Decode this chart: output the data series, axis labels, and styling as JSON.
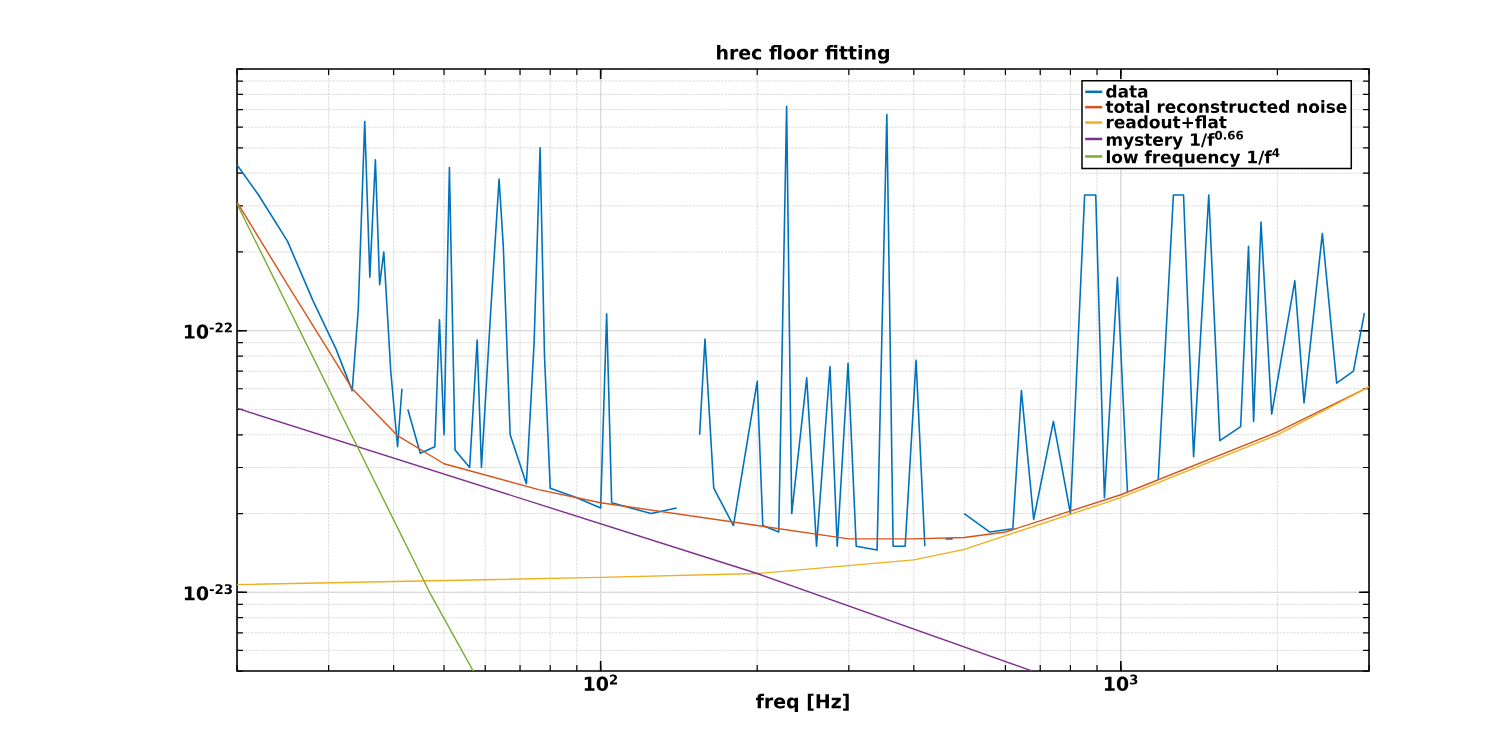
{
  "chart_data": {
    "type": "line",
    "title": "hrec floor fitting",
    "xlabel": "freq [Hz]",
    "log": "xy",
    "grid": true,
    "legend": "top right",
    "xlim": [
      20,
      3000
    ],
    "ylim": [
      5e-24,
      1e-21
    ],
    "xticks": [
      {
        "value": 100,
        "label": "10$^{2}$"
      },
      {
        "value": 1000,
        "label": "10$^{3}$"
      }
    ],
    "yticks": [
      {
        "value": 1e-23,
        "label": "10$^{-23}$"
      },
      {
        "value": 1e-22,
        "label": "10$^{-22}$"
      }
    ],
    "series": [
      {
        "name": "data",
        "color": "#0072bd",
        "x": [
          20,
          22,
          25,
          28,
          31,
          33.3,
          34.2,
          35.2,
          36,
          36.9,
          37.6,
          38.3,
          39.5,
          40.7,
          41.5,
          42,
          42.6,
          45,
          48,
          49,
          50,
          51.2,
          52.5,
          56,
          57.9,
          59,
          61.5,
          63.8,
          65,
          67,
          72,
          74.5,
          76.5,
          78,
          80,
          90,
          100,
          102.7,
          105,
          125,
          140,
          150.6,
          155,
          158.7,
          165,
          180,
          200,
          205,
          220,
          227.8,
          233,
          249,
          260,
          276,
          285,
          299,
          310,
          340,
          355,
          365,
          385,
          404,
          420,
          438,
          450,
          460,
          475,
          488,
          500,
          560,
          620,
          644,
          680,
          742,
          800,
          852,
          895,
          930,
          985,
          1030,
          1100,
          1180,
          1262,
          1320,
          1380,
          1476,
          1550,
          1700,
          1760,
          1800,
          1860,
          1950,
          2160,
          2250,
          2440,
          2600,
          2800,
          2940
        ],
        "values": [
          4.3e-22,
          3.3e-22,
          2.2e-22,
          1.3e-22,
          8.5e-23,
          5.9e-23,
          1.2e-22,
          6.3e-22,
          1.6e-22,
          4.5e-22,
          1.5e-22,
          2e-22,
          7e-23,
          3.6e-23,
          6e-23,
          null,
          5e-23,
          3.4e-23,
          3.6e-23,
          1.1e-22,
          4e-23,
          4.2e-22,
          3.5e-23,
          3e-23,
          9.2e-23,
          3e-23,
          1.2e-22,
          3.8e-22,
          2.1e-22,
          4e-23,
          2.6e-23,
          9e-23,
          5e-22,
          8e-23,
          2.5e-23,
          2.3e-23,
          2.1e-23,
          1.16e-22,
          2.2e-23,
          2e-23,
          2.1e-23,
          null,
          4e-23,
          9.3e-23,
          2.5e-23,
          1.8e-23,
          6.4e-23,
          1.8e-23,
          1.7e-23,
          7.2e-22,
          2e-23,
          6.6e-23,
          1.5e-23,
          7.3e-23,
          1.5e-23,
          7.5e-23,
          1.5e-23,
          1.45e-23,
          6.7e-22,
          1.5e-23,
          1.5e-23,
          7.7e-23,
          1.5e-23,
          null,
          null,
          1.6e-23,
          1.6e-23,
          null,
          2e-23,
          1.7e-23,
          1.75e-23,
          5.9e-23,
          1.9e-23,
          4.5e-23,
          2e-23,
          3.3e-22,
          3.3e-22,
          2.3e-23,
          1.6e-22,
          2.4e-23,
          null,
          2.7e-23,
          3.3e-22,
          3.3e-22,
          3.3e-23,
          3.3e-22,
          3.8e-23,
          4.3e-23,
          2.1e-22,
          4.5e-23,
          2.6e-22,
          4.8e-23,
          1.55e-22,
          5.3e-23,
          2.35e-22,
          6.3e-23,
          7e-23,
          1.17e-22
        ]
      },
      {
        "name": "total reconstructed noise",
        "color": "#d95319",
        "x": [
          20,
          25,
          33.3,
          40.7,
          50,
          76,
          100,
          200,
          300,
          400,
          500,
          600,
          1000,
          2000,
          3000
        ],
        "values": [
          3.1e-22,
          1.5e-22,
          6e-23,
          3.97e-23,
          3.1e-23,
          2.47e-23,
          2.2e-23,
          1.8e-23,
          1.6e-23,
          1.6e-23,
          1.62e-23,
          1.7e-23,
          2.36e-23,
          4.1e-23,
          6.1e-23
        ]
      },
      {
        "name": "readout+flat",
        "color": "#edb120",
        "x": [
          20,
          100,
          200,
          400,
          500,
          1000,
          2000,
          3000
        ],
        "values": [
          1.07e-23,
          1.14e-23,
          1.18e-23,
          1.33e-23,
          1.46e-23,
          2.3e-23,
          4e-23,
          6.1e-23
        ]
      },
      {
        "name": "mystery 1/f$^{0.66}$",
        "color": "#7e2f8e",
        "x": [
          20,
          200,
          676
        ],
        "values": [
          5.05e-23,
          1.18e-23,
          5e-24
        ]
      },
      {
        "name": "low frequency 1/f$^{4}$",
        "color": "#77ac30",
        "x": [
          20,
          46.9,
          56.9
        ],
        "values": [
          3.05e-22,
          1e-23,
          5e-24
        ]
      }
    ]
  }
}
